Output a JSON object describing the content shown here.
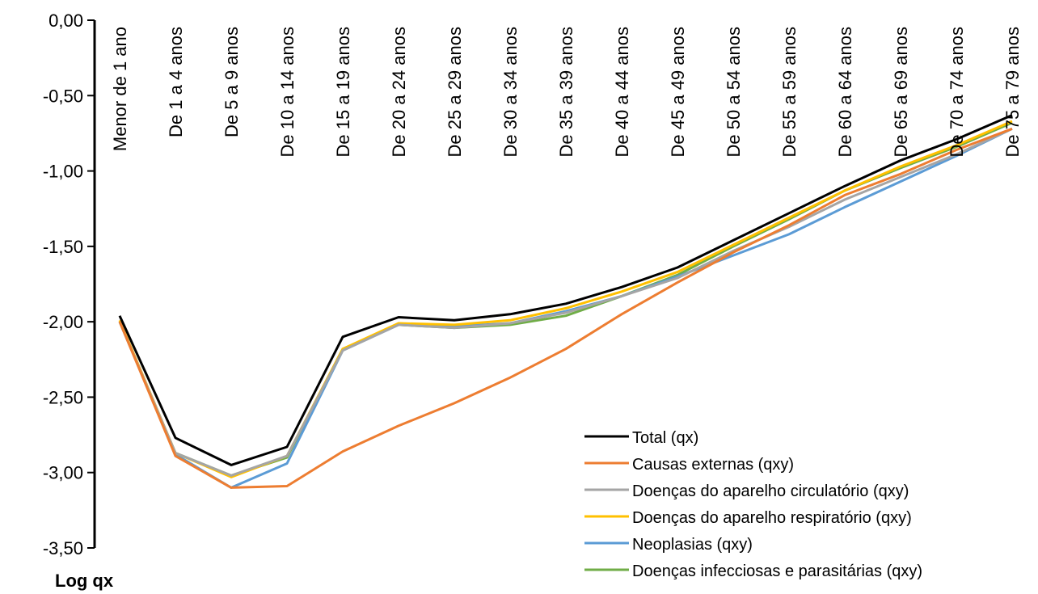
{
  "chart_data": {
    "type": "line",
    "title": "",
    "xlabel": "",
    "ylabel": "Log qx",
    "ylim": [
      -3.5,
      0.0
    ],
    "ytick_step": 0.5,
    "grid": false,
    "legend_position": "bottom-right",
    "categories": [
      "Menor de 1 ano",
      "De 1 a 4 anos",
      "De 5 a 9 anos",
      "De 10 a 14 anos",
      "De 15 a 19 anos",
      "De 20 a 24 anos",
      "De 25 a 29 anos",
      "De 30 a 34 anos",
      "De 35 a 39 anos",
      "De 40 a 44 anos",
      "De 45 a 49 anos",
      "De 50 a 54 anos",
      "De 55 a 59 anos",
      "De 60 a 64 anos",
      "De 65 a 69 anos",
      "De 70 a 74 anos",
      "De 75 a 79 anos"
    ],
    "series": [
      {
        "name": "Total (qx)",
        "color": "#000000",
        "values": [
          -1.96,
          -2.77,
          -2.95,
          -2.83,
          -2.1,
          -1.97,
          -1.99,
          -1.95,
          -1.88,
          -1.77,
          -1.64,
          -1.46,
          -1.28,
          -1.1,
          -0.93,
          -0.79,
          -0.63
        ]
      },
      {
        "name": "Causas externas (qxy)",
        "color": "#ED7D31",
        "values": [
          -2.0,
          -2.89,
          -3.1,
          -3.09,
          -2.86,
          -2.69,
          -2.54,
          -2.37,
          -2.18,
          -1.95,
          -1.74,
          -1.54,
          -1.36,
          -1.16,
          -1.02,
          -0.86,
          -0.72
        ]
      },
      {
        "name": "Doenças do aparelho circulatório (qxy)",
        "color": "#A5A5A5",
        "values": [
          -2.0,
          -2.87,
          -3.02,
          -2.89,
          -2.19,
          -2.02,
          -2.04,
          -2.01,
          -1.94,
          -1.83,
          -1.71,
          -1.53,
          -1.37,
          -1.19,
          -1.04,
          -0.89,
          -0.72
        ]
      },
      {
        "name": "Doenças do aparelho respiratório (qxy)",
        "color": "#FFC000",
        "values": [
          -1.99,
          -2.87,
          -3.03,
          -2.89,
          -2.18,
          -2.01,
          -2.02,
          -1.99,
          -1.91,
          -1.8,
          -1.67,
          -1.49,
          -1.31,
          -1.13,
          -0.97,
          -0.83,
          -0.67
        ]
      },
      {
        "name": "Neoplasias (qxy)",
        "color": "#5B9BD5",
        "values": [
          -2.0,
          -2.88,
          -3.1,
          -2.94,
          -2.19,
          -2.02,
          -2.03,
          -2.01,
          -1.93,
          -1.83,
          -1.7,
          -1.56,
          -1.42,
          -1.24,
          -1.07,
          -0.9,
          -0.72
        ]
      },
      {
        "name": "Doenças infecciosas e parasitárias (qxy)",
        "color": "#70AD47",
        "values": [
          -2.0,
          -2.87,
          -3.02,
          -2.9,
          -2.18,
          -2.02,
          -2.04,
          -2.02,
          -1.96,
          -1.83,
          -1.69,
          -1.5,
          -1.32,
          -1.13,
          -0.98,
          -0.84,
          -0.68
        ]
      }
    ]
  }
}
